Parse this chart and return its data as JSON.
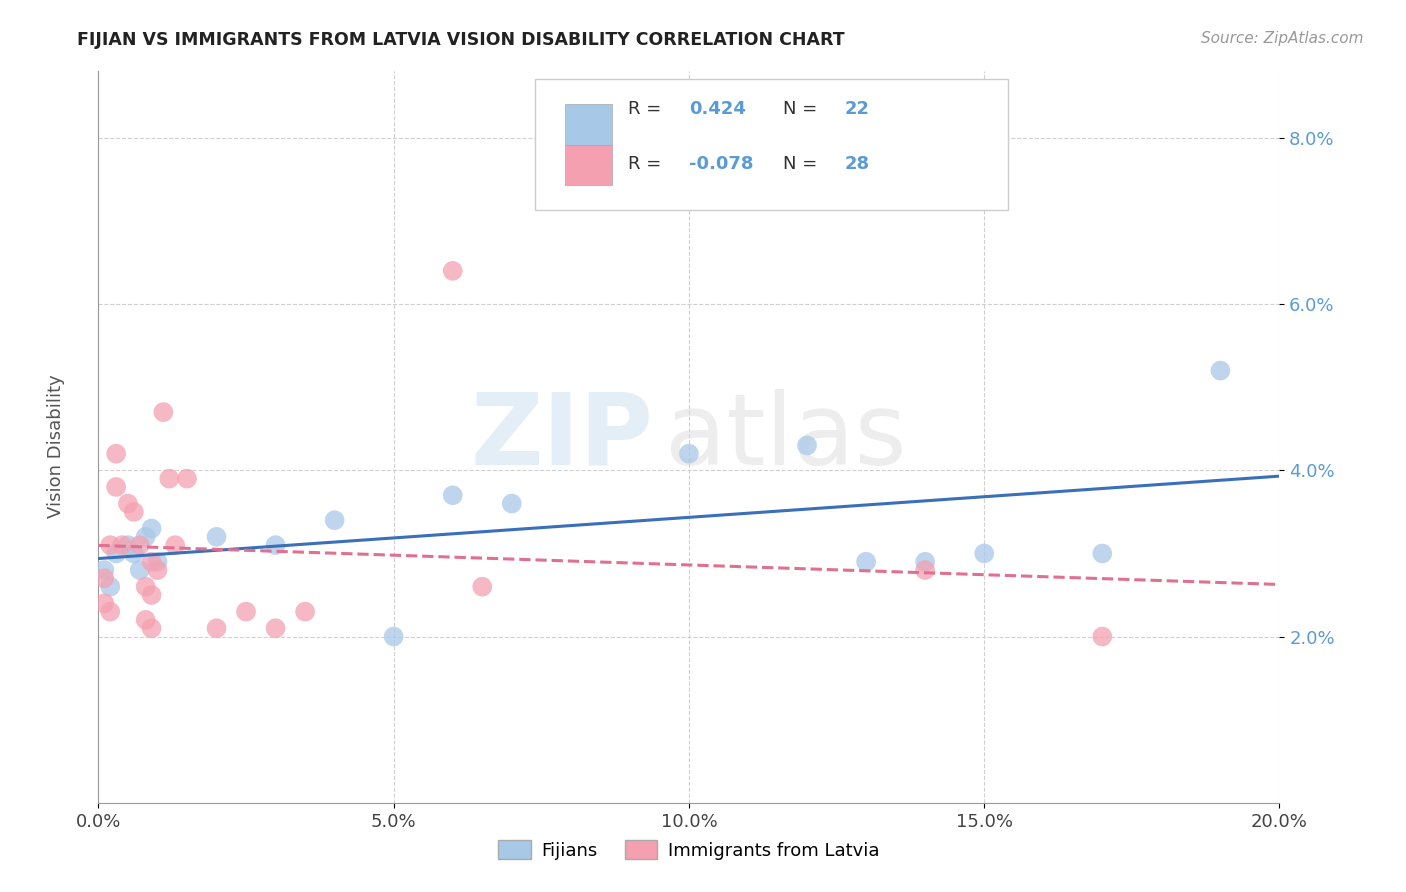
{
  "title": "FIJIAN VS IMMIGRANTS FROM LATVIA VISION DISABILITY CORRELATION CHART",
  "source": "Source: ZipAtlas.com",
  "ylabel": "Vision Disability",
  "xlim": [
    0.0,
    0.2
  ],
  "ylim": [
    0.0,
    0.088
  ],
  "yticks": [
    0.02,
    0.04,
    0.06,
    0.08
  ],
  "ytick_labels": [
    "2.0%",
    "4.0%",
    "6.0%",
    "8.0%"
  ],
  "xticks": [
    0.0,
    0.05,
    0.1,
    0.15,
    0.2
  ],
  "xtick_labels": [
    "0.0%",
    "5.0%",
    "10.0%",
    "15.0%",
    "20.0%"
  ],
  "blue_R": 0.424,
  "blue_N": 22,
  "pink_R": -0.078,
  "pink_N": 28,
  "blue_scatter_color": "#a8c8e8",
  "pink_scatter_color": "#f4a0b0",
  "blue_line_color": "#3a6fba",
  "pink_line_color": "#e07090",
  "tick_color": "#5b9bd5",
  "fijian_x": [
    0.001,
    0.002,
    0.003,
    0.005,
    0.006,
    0.007,
    0.008,
    0.009,
    0.01,
    0.02,
    0.03,
    0.04,
    0.05,
    0.06,
    0.07,
    0.1,
    0.12,
    0.13,
    0.14,
    0.15,
    0.17,
    0.19
  ],
  "fijian_y": [
    0.028,
    0.026,
    0.03,
    0.031,
    0.03,
    0.028,
    0.032,
    0.033,
    0.029,
    0.032,
    0.031,
    0.034,
    0.02,
    0.037,
    0.036,
    0.042,
    0.043,
    0.029,
    0.029,
    0.03,
    0.03,
    0.052
  ],
  "latvia_x": [
    0.001,
    0.001,
    0.002,
    0.002,
    0.003,
    0.003,
    0.004,
    0.005,
    0.006,
    0.007,
    0.008,
    0.008,
    0.009,
    0.009,
    0.009,
    0.01,
    0.011,
    0.012,
    0.013,
    0.015,
    0.02,
    0.025,
    0.03,
    0.035,
    0.06,
    0.065,
    0.14,
    0.17
  ],
  "latvia_y": [
    0.027,
    0.024,
    0.031,
    0.023,
    0.042,
    0.038,
    0.031,
    0.036,
    0.035,
    0.031,
    0.026,
    0.022,
    0.029,
    0.025,
    0.021,
    0.028,
    0.047,
    0.039,
    0.031,
    0.039,
    0.021,
    0.023,
    0.021,
    0.023,
    0.064,
    0.026,
    0.028,
    0.02
  ],
  "watermark_zip": "ZIP",
  "watermark_atlas": "atlas",
  "legend_fijians": "Fijians",
  "legend_latvia": "Immigrants from Latvia"
}
